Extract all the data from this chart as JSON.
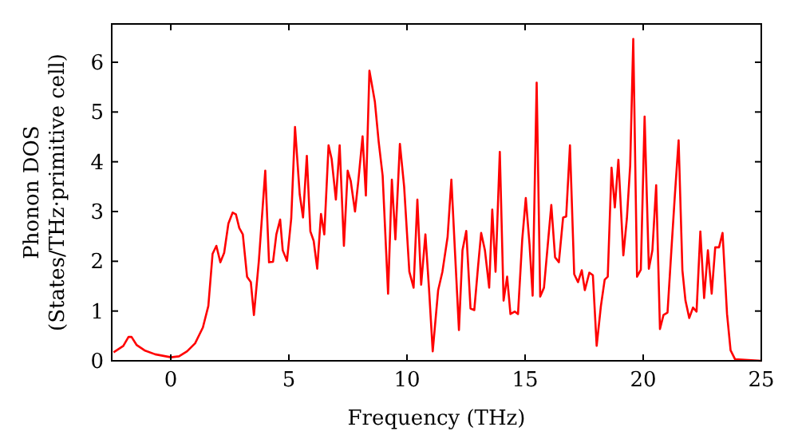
{
  "chart_data": {
    "type": "line",
    "xlabel": "Frequency (THz)",
    "ylabel": "Phonon DOS\n(States/THz·primitive cell)",
    "xlim": [
      -2.5,
      25
    ],
    "ylim": [
      0,
      6.77
    ],
    "xticks": [
      0,
      5,
      10,
      15,
      20,
      25
    ],
    "yticks": [
      0,
      1,
      2,
      3,
      4,
      5,
      6
    ],
    "grid": false,
    "marker": "none",
    "line_style": "solid",
    "series": [
      {
        "color": "#ff0000",
        "x": [
          -2.42,
          -2.01,
          -1.79,
          -1.66,
          -1.45,
          -1.11,
          -0.66,
          0.01,
          0.35,
          0.69,
          1.03,
          1.36,
          1.59,
          1.77,
          1.93,
          2.1,
          2.26,
          2.44,
          2.62,
          2.76,
          2.9,
          3.05,
          3.23,
          3.39,
          3.52,
          3.73,
          4.0,
          4.16,
          4.33,
          4.47,
          4.63,
          4.74,
          4.92,
          5.1,
          5.26,
          5.46,
          5.6,
          5.76,
          5.91,
          6.05,
          6.2,
          6.36,
          6.5,
          6.68,
          6.81,
          6.99,
          7.15,
          7.33,
          7.49,
          7.62,
          7.8,
          7.94,
          8.12,
          8.26,
          8.41,
          8.64,
          8.8,
          8.97,
          9.2,
          9.36,
          9.51,
          9.7,
          9.88,
          10.1,
          10.28,
          10.44,
          10.6,
          10.78,
          10.93,
          11.09,
          11.32,
          11.5,
          11.72,
          11.88,
          12.04,
          12.2,
          12.35,
          12.51,
          12.69,
          12.85,
          13.01,
          13.14,
          13.3,
          13.48,
          13.61,
          13.75,
          13.93,
          14.09,
          14.24,
          14.38,
          14.56,
          14.7,
          14.88,
          15.03,
          15.19,
          15.32,
          15.49,
          15.64,
          15.8,
          15.96,
          16.11,
          16.27,
          16.43,
          16.61,
          16.74,
          16.9,
          17.08,
          17.24,
          17.4,
          17.53,
          17.72,
          17.87,
          18.03,
          18.21,
          18.37,
          18.5,
          18.66,
          18.8,
          18.95,
          19.16,
          19.31,
          19.45,
          19.58,
          19.74,
          19.9,
          20.06,
          20.24,
          20.39,
          20.55,
          20.71,
          20.86,
          21.03,
          21.18,
          21.34,
          21.5,
          21.66,
          21.79,
          21.95,
          22.11,
          22.26,
          22.42,
          22.58,
          22.74,
          22.9,
          23.05,
          23.21,
          23.36,
          23.55,
          23.7,
          23.89,
          25.0
        ],
        "values": [
          0.17,
          0.3,
          0.48,
          0.48,
          0.32,
          0.21,
          0.13,
          0.07,
          0.09,
          0.19,
          0.35,
          0.67,
          1.1,
          2.15,
          2.31,
          1.98,
          2.17,
          2.76,
          2.98,
          2.94,
          2.67,
          2.54,
          1.69,
          1.58,
          0.92,
          2.01,
          3.82,
          1.98,
          1.99,
          2.54,
          2.84,
          2.22,
          2.01,
          2.86,
          4.7,
          3.34,
          2.88,
          4.12,
          2.6,
          2.41,
          1.85,
          2.95,
          2.54,
          4.33,
          4.06,
          3.24,
          4.33,
          2.31,
          3.82,
          3.61,
          3.0,
          3.61,
          4.51,
          3.32,
          5.83,
          5.21,
          4.41,
          3.72,
          1.35,
          3.64,
          2.44,
          4.36,
          3.5,
          1.79,
          1.47,
          3.24,
          1.53,
          2.54,
          1.47,
          0.19,
          1.42,
          1.79,
          2.49,
          3.64,
          2.12,
          0.62,
          2.22,
          2.61,
          1.05,
          1.02,
          1.9,
          2.57,
          2.22,
          1.47,
          3.04,
          1.79,
          4.2,
          1.21,
          1.69,
          0.94,
          0.99,
          0.94,
          2.44,
          3.27,
          2.33,
          1.31,
          5.59,
          1.29,
          1.47,
          2.33,
          3.13,
          2.08,
          1.98,
          2.88,
          2.9,
          4.33,
          1.74,
          1.58,
          1.82,
          1.42,
          1.77,
          1.72,
          0.3,
          1.1,
          1.63,
          1.69,
          3.88,
          3.08,
          4.04,
          2.12,
          2.86,
          3.93,
          6.47,
          1.69,
          1.83,
          4.91,
          1.85,
          2.22,
          3.53,
          0.64,
          0.92,
          0.97,
          2.12,
          3.32,
          4.43,
          1.82,
          1.21,
          0.86,
          1.07,
          0.99,
          2.6,
          1.26,
          2.22,
          1.35,
          2.28,
          2.28,
          2.57,
          0.94,
          0.21,
          0.03,
          0
        ]
      }
    ]
  }
}
